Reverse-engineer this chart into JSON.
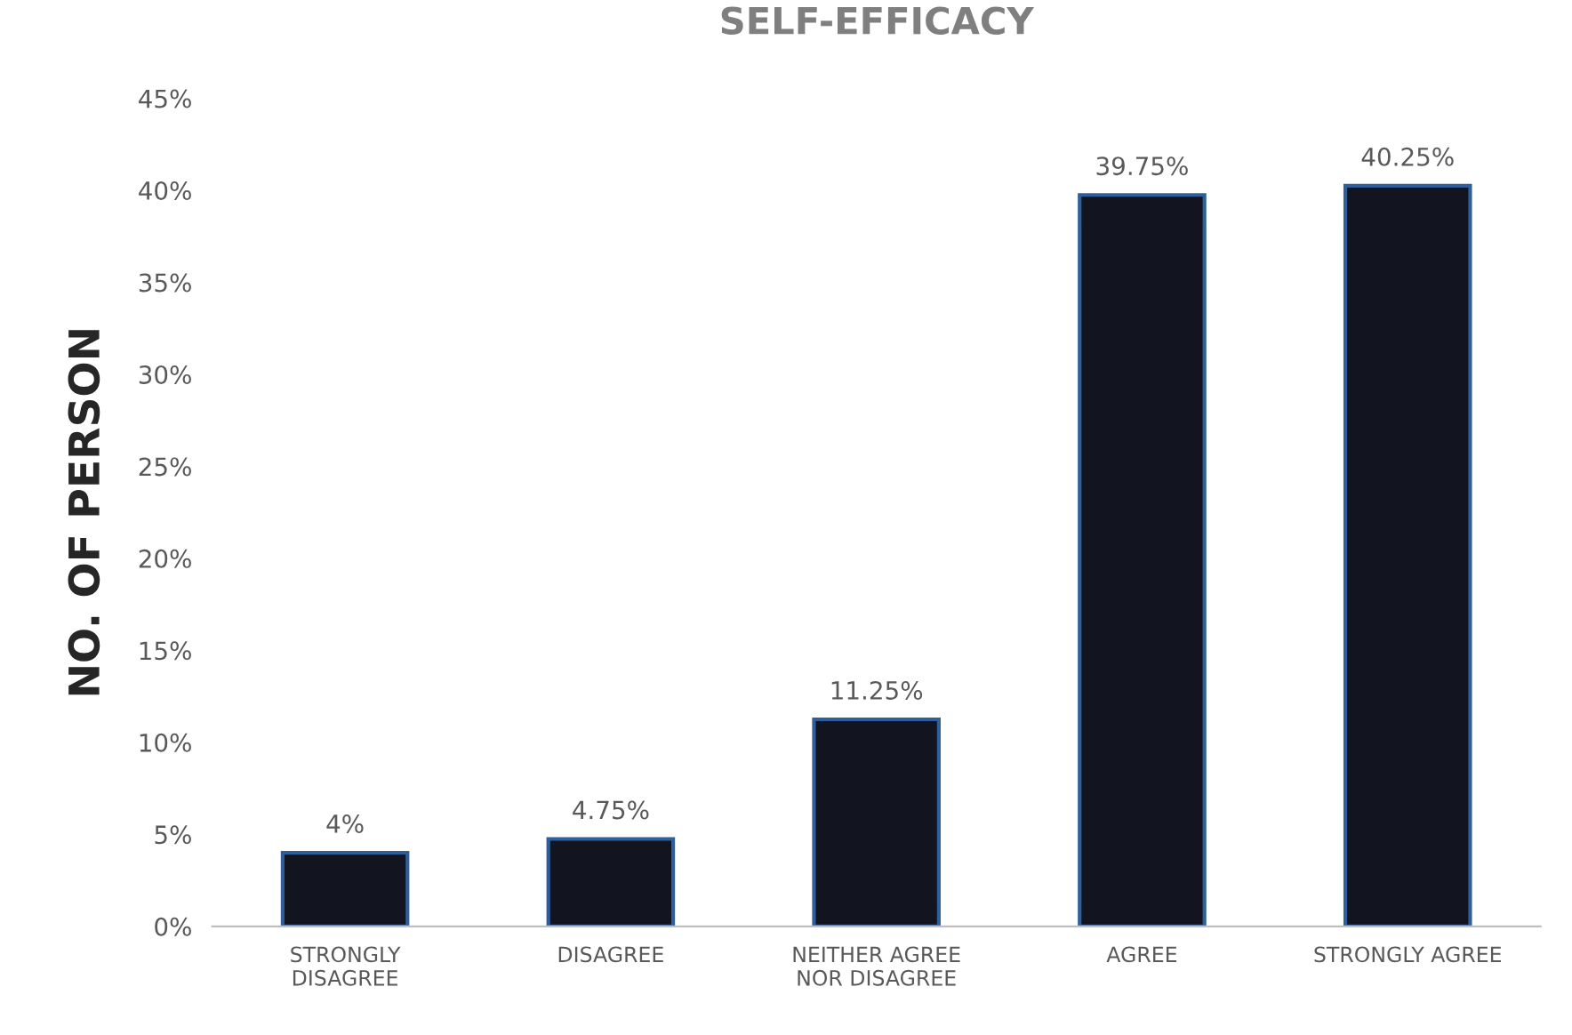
{
  "chart_data": {
    "type": "bar",
    "title": "SELF-EFFICACY",
    "ylabel": "NO. OF PERSON",
    "categories": [
      "STRONGLY\nDISAGREE",
      "DISAGREE",
      "NEITHER AGREE\nNOR DISAGREE",
      "AGREE",
      "STRONGLY AGREE"
    ],
    "values": [
      4,
      4.75,
      11.25,
      39.75,
      40.25
    ],
    "value_labels": [
      "4%",
      "4.75%",
      "11.25%",
      "39.75%",
      "40.25%"
    ],
    "color": "#12151f",
    "ylim": [
      0,
      45
    ],
    "yticks": [
      {
        "value": 0,
        "label": "0%"
      },
      {
        "value": 5,
        "label": "5%"
      },
      {
        "value": 10,
        "label": "10%"
      },
      {
        "value": 15,
        "label": "15%"
      },
      {
        "value": 20,
        "label": "20%"
      },
      {
        "value": 25,
        "label": "25%"
      },
      {
        "value": 30,
        "label": "30%"
      },
      {
        "value": 35,
        "label": "35%"
      },
      {
        "value": 40,
        "label": "40%"
      },
      {
        "value": 45,
        "label": "45%"
      }
    ],
    "grid": false,
    "legend": false
  }
}
